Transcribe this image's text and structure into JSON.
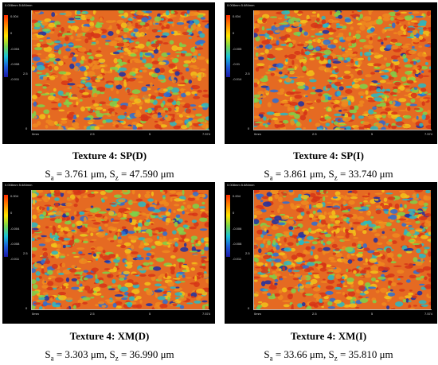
{
  "header_text": "0.008mm 5.684mm",
  "xticks": [
    "0mm",
    "2.5",
    "5",
    "7.574"
  ],
  "ytick_mid": "2.5",
  "ytick_zero": "0",
  "panels": [
    {
      "colorbar_labels": [
        "0.004",
        "0",
        "-0.004",
        "-0.008",
        "-0.011"
      ],
      "title": "Texture 4: SP(D)",
      "stats": {
        "sa_label": "S",
        "sa_sub": "a",
        "sa_value": " = 3.761 μm, ",
        "sz_label": "S",
        "sz_sub": "z",
        "sz_value": " = 47.590 μm"
      }
    },
    {
      "colorbar_labels": [
        "0.004",
        "0",
        "-0.005",
        "-0.01",
        "-0.014"
      ],
      "title": "Texture 4: SP(I)",
      "stats": {
        "sa_label": "S",
        "sa_sub": "a",
        "sa_value": " = 3.861 μm, ",
        "sz_label": "S",
        "sz_sub": "z",
        "sz_value": " = 33.740 μm"
      }
    },
    {
      "colorbar_labels": [
        "0.004",
        "0",
        "-0.004",
        "-0.008",
        "-0.011"
      ],
      "title": "Texture 4: XM(D)",
      "stats": {
        "sa_label": "S",
        "sa_sub": "a",
        "sa_value": " = 3.303 μm, ",
        "sz_label": "S",
        "sz_sub": "z",
        "sz_value": " = 36.990 μm"
      }
    },
    {
      "colorbar_labels": [
        "0.004",
        "0",
        "-0.006",
        "-0.008",
        "-0.011"
      ],
      "title": "Texture 4: XM(I)",
      "stats": {
        "sa_label": "S",
        "sa_sub": "a",
        "sa_value": " = 33.66 μm, ",
        "sz_label": "S",
        "sz_sub": "z",
        "sz_value": " = 35.810 μm"
      }
    }
  ],
  "colors": {
    "surface_base": "#e56a22",
    "surface_palette": [
      "#d63418",
      "#ee8a1e",
      "#f2c21a",
      "#7cd24a",
      "#27b9c6",
      "#2a6fd8",
      "#1b2fa6"
    ]
  }
}
